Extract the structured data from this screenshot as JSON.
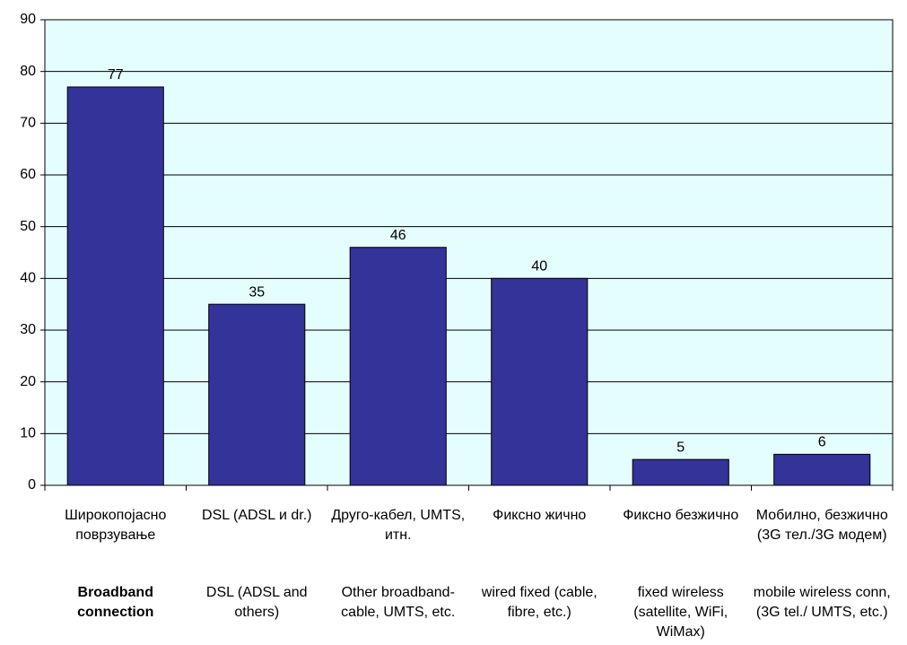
{
  "chart_data": {
    "type": "bar",
    "categories": [
      "Широкопојасно поврзување",
      "DSL (ADSL и dr.)",
      "Друго-кабел, UMTS, итн.",
      "Фиксно жично",
      "Фиксно безжично",
      "Мобилно, безжично (3G тел./3G модем)"
    ],
    "categories_en": [
      "Broadband connection",
      "DSL (ADSL and others)",
      "Other broadband-cable, UMTS, etc.",
      "wired fixed (cable, fibre, etc.)",
      "fixed wireless (satellite, WiFi, WiMax)",
      "mobile wireless conn, (3G tel./ UMTS, etc.)"
    ],
    "values": [
      77,
      35,
      46,
      40,
      5,
      6
    ],
    "color": "#333399",
    "ylim": [
      0,
      90
    ],
    "yticks": [
      0,
      10,
      20,
      30,
      40,
      50,
      60,
      70,
      80,
      90
    ],
    "grid": true
  }
}
